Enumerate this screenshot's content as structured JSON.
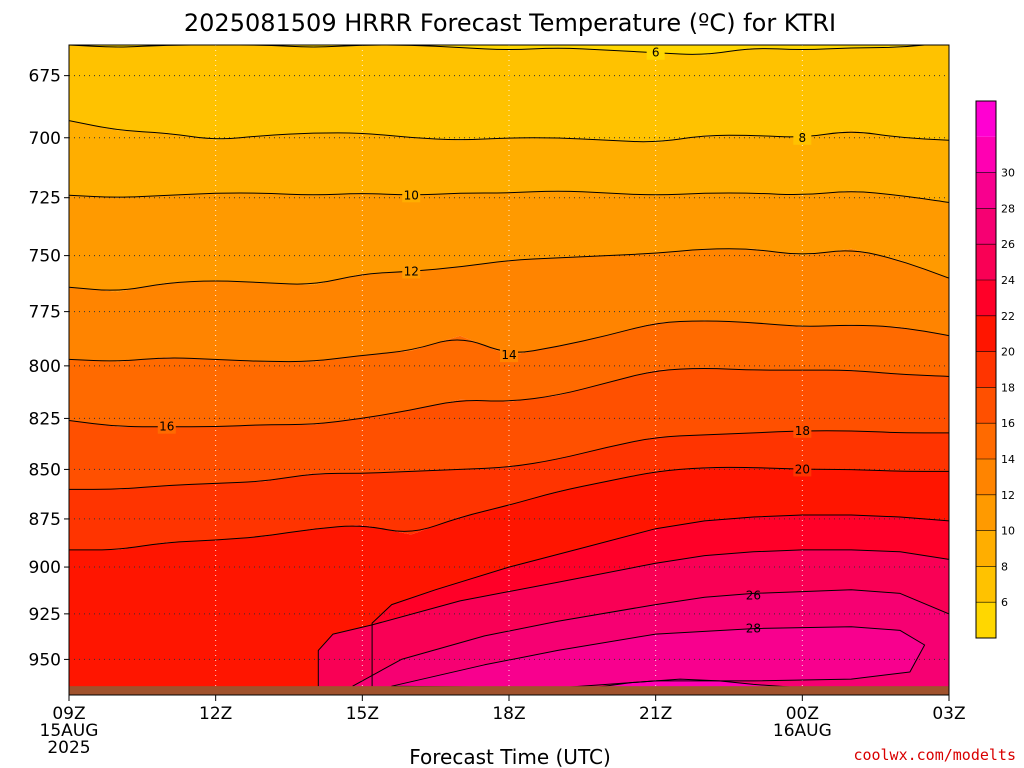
{
  "chart_data": {
    "type": "heatmap",
    "title": "2025081509 HRRR Forecast Temperature (ºC) for KTRI",
    "xlabel": "Forecast Time (UTC)",
    "ylabel": "",
    "x_ticks": [
      {
        "hour": 0,
        "lines": [
          "09Z",
          "15AUG",
          "2025"
        ]
      },
      {
        "hour": 3,
        "lines": [
          "12Z"
        ]
      },
      {
        "hour": 6,
        "lines": [
          "15Z"
        ]
      },
      {
        "hour": 9,
        "lines": [
          "18Z"
        ]
      },
      {
        "hour": 12,
        "lines": [
          "21Z"
        ]
      },
      {
        "hour": 15,
        "lines": [
          "00Z",
          "16AUG"
        ]
      },
      {
        "hour": 18,
        "lines": [
          "03Z"
        ]
      }
    ],
    "xlim": [
      0,
      18
    ],
    "y_ticks": [
      675,
      700,
      725,
      750,
      775,
      800,
      825,
      850,
      875,
      900,
      925,
      950
    ],
    "ylim": [
      663,
      970
    ],
    "ground_pressure": 965,
    "grid": true,
    "colorbar": {
      "levels": [
        4,
        6,
        8,
        10,
        12,
        14,
        16,
        18,
        20,
        22,
        24,
        26,
        28,
        30,
        32
      ],
      "labels": [
        6,
        8,
        10,
        12,
        14,
        16,
        18,
        20,
        22,
        24,
        26,
        28,
        30
      ],
      "colors": [
        "#ffd700",
        "#ffc200",
        "#ffae00",
        "#ff9a00",
        "#ff8400",
        "#ff6a00",
        "#ff5000",
        "#ff3400",
        "#ff1500",
        "#ff0028",
        "#f90055",
        "#f60072",
        "#f8008e",
        "#ff00b2",
        "#ff00d2"
      ],
      "placement": "right"
    },
    "ground_color": "#a0522d",
    "hours": [
      0,
      1,
      2,
      3,
      4,
      5,
      6,
      7,
      8,
      9,
      10,
      11,
      12,
      13,
      14,
      15,
      16,
      17,
      18
    ],
    "isotherms": [
      {
        "value": 6,
        "pressure": [
          663,
          664,
          663,
          663,
          663,
          664,
          663,
          663,
          664,
          665,
          664,
          665,
          666,
          667,
          664,
          665,
          664,
          664,
          662
        ],
        "label_hour": 12
      },
      {
        "value": 8,
        "pressure": [
          693,
          697,
          698,
          701,
          699,
          698,
          698,
          700,
          701,
          700,
          700,
          701,
          702,
          699,
          699,
          700,
          697,
          700,
          701
        ],
        "label_hour": 15
      },
      {
        "value": 10,
        "pressure": [
          724,
          725,
          724,
          723,
          723,
          724,
          723,
          724,
          723,
          723,
          722,
          723,
          724,
          723,
          723,
          724,
          722,
          724,
          727
        ],
        "label_hour": 7
      },
      {
        "value": 12,
        "pressure": [
          764,
          766,
          762,
          761,
          762,
          763,
          758,
          757,
          755,
          752,
          751,
          750,
          749,
          747,
          747,
          750,
          747,
          752,
          760
        ],
        "label_hour": 7
      },
      {
        "value": 14,
        "pressure": [
          797,
          798,
          796,
          797,
          798,
          798,
          795,
          793,
          786,
          795,
          791,
          786,
          780,
          779,
          780,
          782,
          781,
          782,
          786
        ],
        "label_hour": 9
      },
      {
        "value": 16,
        "pressure": [
          826,
          829,
          829,
          829,
          828,
          828,
          825,
          821,
          816,
          817,
          814,
          808,
          802,
          801,
          802,
          802,
          802,
          804,
          805
        ],
        "label_hour": 2
      },
      {
        "value": 18,
        "pressure": [
          860,
          860,
          858,
          857,
          856,
          852,
          852,
          851,
          850,
          849,
          845,
          839,
          834,
          833,
          832,
          831,
          831,
          832,
          832
        ],
        "label_hour": 15
      },
      {
        "value": 20,
        "pressure": [
          891,
          891,
          887,
          886,
          884,
          880,
          878,
          883,
          874,
          868,
          861,
          856,
          851,
          849,
          849,
          850,
          850,
          851,
          851
        ],
        "label_hour": 15
      }
    ],
    "warm_contours": [
      {
        "value": 22,
        "points": [
          [
            6.2,
            965
          ],
          [
            6.2,
            930
          ],
          [
            6.6,
            920
          ],
          [
            7.5,
            912
          ],
          [
            9,
            900
          ],
          [
            10.5,
            890
          ],
          [
            12,
            880
          ],
          [
            13,
            876
          ],
          [
            14,
            874
          ],
          [
            15,
            873
          ],
          [
            16,
            873
          ],
          [
            17,
            874
          ],
          [
            18,
            876
          ]
        ]
      },
      {
        "value": 24,
        "points": [
          [
            5.1,
            965
          ],
          [
            5.1,
            945
          ],
          [
            5.4,
            936
          ],
          [
            6.2,
            931
          ],
          [
            8,
            918
          ],
          [
            10,
            908
          ],
          [
            12,
            898
          ],
          [
            13,
            894
          ],
          [
            14,
            892
          ],
          [
            15,
            891
          ],
          [
            16,
            891
          ],
          [
            17,
            892
          ],
          [
            18,
            896
          ]
        ]
      },
      {
        "value": 26,
        "points": [
          [
            5.8,
            965
          ],
          [
            6.8,
            950
          ],
          [
            8.5,
            937
          ],
          [
            10,
            929
          ],
          [
            12,
            920
          ],
          [
            13,
            916
          ],
          [
            14,
            914
          ],
          [
            15,
            913
          ],
          [
            16,
            912
          ],
          [
            17,
            914
          ],
          [
            18,
            925
          ]
        ]
      },
      {
        "value": 28,
        "points": [
          [
            6.6,
            965
          ],
          [
            8.5,
            953
          ],
          [
            10,
            945
          ],
          [
            12,
            936
          ],
          [
            14,
            933
          ],
          [
            16,
            932
          ],
          [
            17,
            934
          ],
          [
            17.5,
            942
          ],
          [
            17.2,
            957
          ],
          [
            16,
            961
          ],
          [
            14,
            962
          ],
          [
            13,
            962
          ],
          [
            12,
            962
          ],
          [
            11,
            964
          ],
          [
            10,
            966
          ]
        ]
      },
      {
        "value": 30,
        "points": [
          [
            10.7,
            966
          ],
          [
            11.5,
            963
          ],
          [
            12.5,
            961
          ],
          [
            13.3,
            962
          ],
          [
            14,
            964
          ],
          [
            15,
            966
          ]
        ]
      }
    ],
    "contour_labels": [
      {
        "value": "26",
        "hour": 14.0,
        "pressure": 915
      },
      {
        "value": "28",
        "hour": 14.0,
        "pressure": 933
      }
    ]
  },
  "footer": {
    "credit": "coolwx.com/modelts"
  },
  "colors": {
    "credit": "#d90000"
  }
}
